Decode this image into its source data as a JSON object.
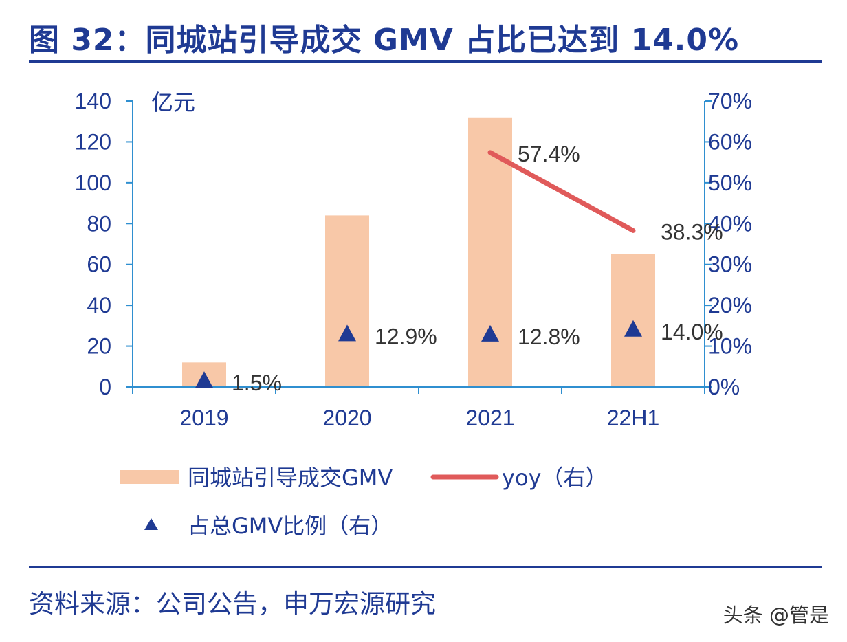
{
  "title": "图 32：同城站引导成交 GMV 占比已达到 14.0%",
  "source": "资料来源：公司公告，申万宏源研究",
  "watermark": "头条 @管是",
  "colors": {
    "bar": "#f8c8a8",
    "line": "#e05a5a",
    "marker": "#1f3a93",
    "axis": "#2f8fd0",
    "text": "#1f3a93"
  },
  "chart_data": {
    "type": "bar",
    "categories": [
      "2019",
      "2020",
      "2021",
      "22H1"
    ],
    "y_left": {
      "unit": "亿元",
      "range": [
        0,
        140
      ],
      "ticks": [
        0,
        20,
        40,
        60,
        80,
        100,
        120,
        140
      ]
    },
    "y_right": {
      "range": [
        0,
        70
      ],
      "ticks": [
        "0%",
        "10%",
        "20%",
        "30%",
        "40%",
        "50%",
        "60%",
        "70%"
      ]
    },
    "series": [
      {
        "name": "同城站引导成交GMV",
        "kind": "bar",
        "axis": "left",
        "values": [
          12,
          84,
          132,
          65
        ]
      },
      {
        "name": "yoy（右）",
        "kind": "line",
        "axis": "right",
        "values": [
          null,
          null,
          57.4,
          38.3
        ],
        "labels": [
          "",
          "",
          "57.4%",
          "38.3%"
        ]
      },
      {
        "name": "占总GMV比例（右）",
        "kind": "marker",
        "axis": "right",
        "values": [
          1.5,
          12.9,
          12.8,
          14.0
        ],
        "labels": [
          "1.5%",
          "12.9%",
          "12.8%",
          "14.0%"
        ]
      }
    ],
    "legend": [
      "同城站引导成交GMV",
      "yoy（右）",
      "占总GMV比例（右）"
    ]
  }
}
